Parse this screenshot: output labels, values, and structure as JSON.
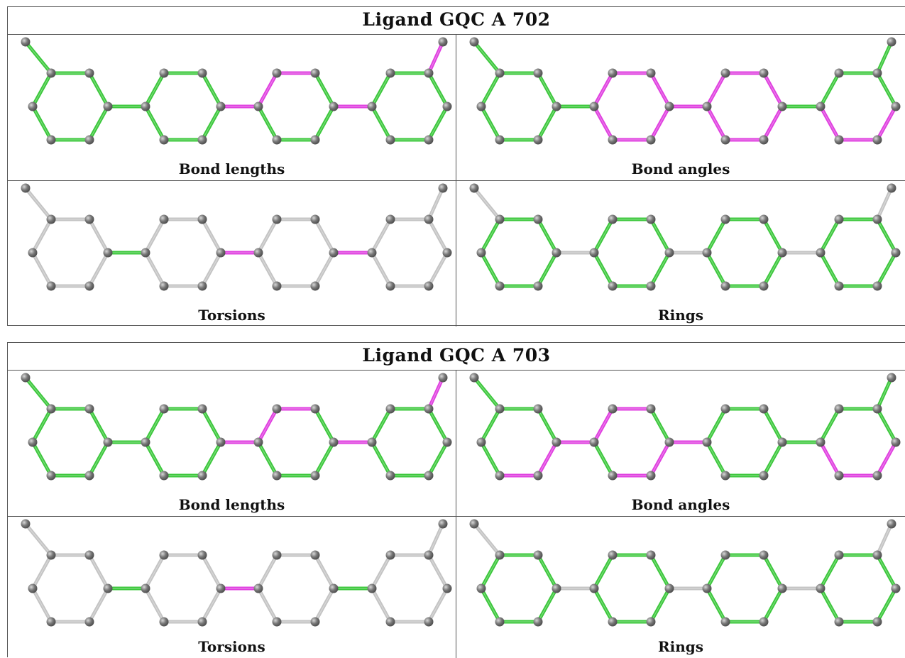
{
  "colors": {
    "green": "#3cc83c",
    "magenta": "#e040e0",
    "gray": "#c4c4c4",
    "atom": "#787878"
  },
  "ligands": [
    {
      "title": "Ligand GQC A 702",
      "panels": [
        {
          "label": "Bond lengths",
          "rings": [
            "G",
            "G",
            "G",
            "G"
          ],
          "links": [
            "G",
            "M",
            "M"
          ],
          "subs": [
            "G",
            "M"
          ],
          "ring_special": {
            "2": {
              "0": "M",
              "5": "M"
            }
          }
        },
        {
          "label": "Bond angles",
          "rings": [
            "G",
            "M",
            "M",
            "G"
          ],
          "links": [
            "G",
            "M",
            "G"
          ],
          "subs": [
            "G",
            "G"
          ],
          "ring_special": {
            "3": {
              "2": "M",
              "3": "M",
              "4": "M",
              "5": "G",
              "0": "G",
              "1": "G"
            }
          }
        },
        {
          "label": "Torsions",
          "rings": [
            "X",
            "X",
            "X",
            "X"
          ],
          "links": [
            "G",
            "M",
            "M"
          ],
          "subs": [
            "X",
            "X"
          ],
          "ring_special": {}
        },
        {
          "label": "Rings",
          "rings": [
            "G",
            "G",
            "G",
            "G"
          ],
          "links": [
            "X",
            "X",
            "X"
          ],
          "subs": [
            "X",
            "X"
          ],
          "ring_special": {}
        }
      ]
    },
    {
      "title": "Ligand GQC A 703",
      "panels": [
        {
          "label": "Bond lengths",
          "rings": [
            "G",
            "G",
            "G",
            "G"
          ],
          "links": [
            "G",
            "M",
            "M"
          ],
          "subs": [
            "G",
            "M"
          ],
          "ring_special": {
            "2": {
              "0": "M",
              "5": "M"
            }
          }
        },
        {
          "label": "Bond angles",
          "rings": [
            "G",
            "G",
            "G",
            "G"
          ],
          "links": [
            "M",
            "M",
            "G"
          ],
          "subs": [
            "G",
            "G"
          ],
          "ring_special": {
            "0": {
              "2": "M",
              "3": "M"
            },
            "1": {
              "5": "M",
              "0": "M",
              "2": "M",
              "3": "M"
            },
            "3": {
              "2": "M",
              "3": "M",
              "4": "M"
            }
          }
        },
        {
          "label": "Torsions",
          "rings": [
            "X",
            "X",
            "X",
            "X"
          ],
          "links": [
            "G",
            "M",
            "G"
          ],
          "subs": [
            "X",
            "X"
          ],
          "ring_special": {}
        },
        {
          "label": "Rings",
          "rings": [
            "G",
            "G",
            "G",
            "G"
          ],
          "links": [
            "X",
            "X",
            "X"
          ],
          "subs": [
            "X",
            "X"
          ],
          "ring_special": {}
        }
      ]
    }
  ]
}
